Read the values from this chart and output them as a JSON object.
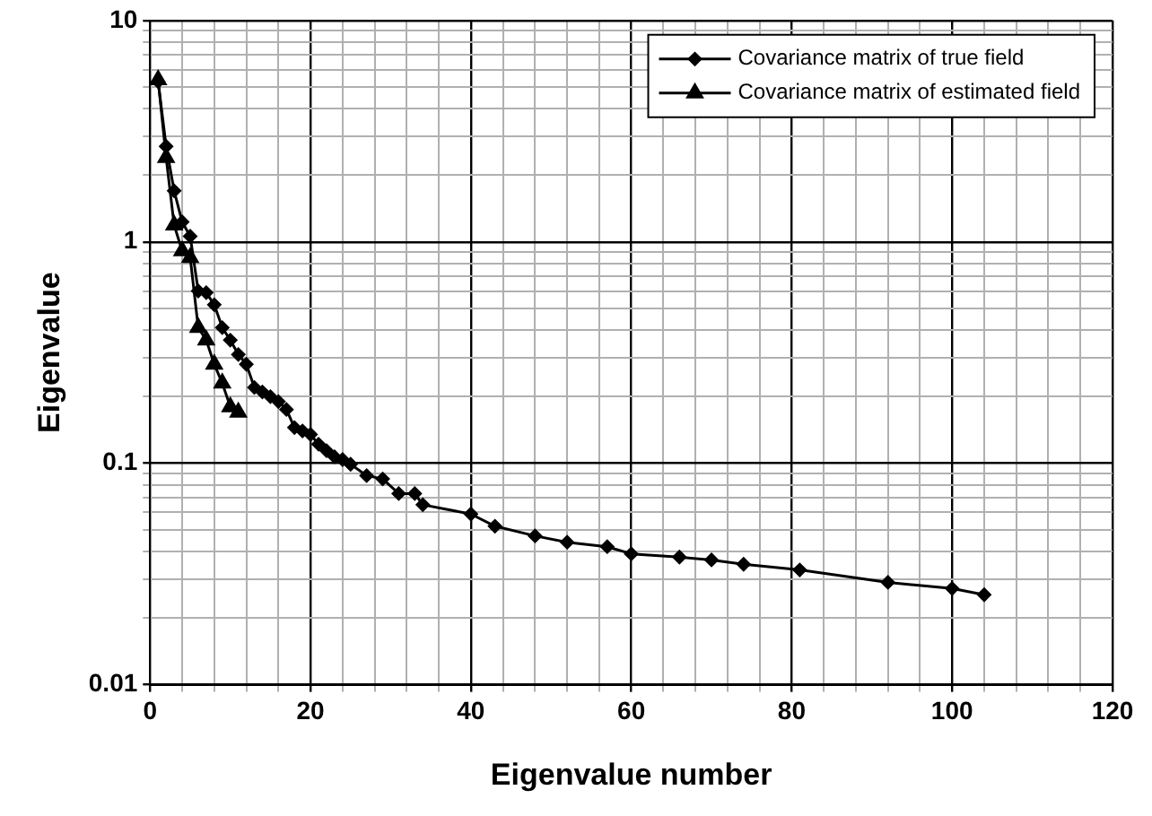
{
  "chart_data": {
    "type": "line",
    "xlabel": "Eigenvalue number",
    "ylabel": "Eigenvalue",
    "log": "y",
    "grid": true,
    "legend": "top right",
    "xlim": [
      0,
      120
    ],
    "xticks": [
      0,
      {
        "value": 4,
        "label": null
      },
      {
        "value": 8,
        "label": null
      },
      {
        "value": 12,
        "label": null
      },
      {
        "value": 16,
        "label": null
      },
      20,
      {
        "value": 24,
        "label": null
      },
      {
        "value": 28,
        "label": null
      },
      {
        "value": 32,
        "label": null
      },
      {
        "value": 36,
        "label": null
      },
      40,
      {
        "value": 44,
        "label": null
      },
      {
        "value": 48,
        "label": null
      },
      {
        "value": 52,
        "label": null
      },
      {
        "value": 56,
        "label": null
      },
      60,
      {
        "value": 64,
        "label": null
      },
      {
        "value": 68,
        "label": null
      },
      {
        "value": 72,
        "label": null
      },
      {
        "value": 76,
        "label": null
      },
      80,
      {
        "value": 84,
        "label": null
      },
      {
        "value": 88,
        "label": null
      },
      {
        "value": 92,
        "label": null
      },
      {
        "value": 96,
        "label": null
      },
      100,
      {
        "value": 104,
        "label": null
      },
      {
        "value": 108,
        "label": null
      },
      {
        "value": 112,
        "label": null
      },
      {
        "value": 116,
        "label": null
      },
      120
    ],
    "ylim": [
      0.01,
      10
    ],
    "yticks": [
      0.01,
      {
        "value": 0.02,
        "label": null
      },
      {
        "value": 0.03,
        "label": null
      },
      {
        "value": 0.04,
        "label": null
      },
      {
        "value": 0.05,
        "label": null
      },
      {
        "value": 0.06,
        "label": null
      },
      {
        "value": 0.07,
        "label": null
      },
      {
        "value": 0.08,
        "label": null
      },
      {
        "value": 0.09,
        "label": null
      },
      0.1,
      {
        "value": 0.2,
        "label": null
      },
      {
        "value": 0.3,
        "label": null
      },
      {
        "value": 0.4,
        "label": null
      },
      {
        "value": 0.5,
        "label": null
      },
      {
        "value": 0.6,
        "label": null
      },
      {
        "value": 0.7,
        "label": null
      },
      {
        "value": 0.8,
        "label": null
      },
      {
        "value": 0.9,
        "label": null
      },
      1,
      {
        "value": 2,
        "label": null
      },
      {
        "value": 3,
        "label": null
      },
      {
        "value": 4,
        "label": null
      },
      {
        "value": 5,
        "label": null
      },
      {
        "value": 6,
        "label": null
      },
      {
        "value": 7,
        "label": null
      },
      {
        "value": 8,
        "label": null
      },
      {
        "value": 9,
        "label": null
      },
      10
    ],
    "series": [
      {
        "name": "Covariance matrix of true field",
        "color": "#000000",
        "marker": "diamond",
        "x": [
          1,
          2,
          3,
          4,
          5,
          6,
          7,
          8,
          9,
          10,
          11,
          12,
          13,
          14,
          15,
          16,
          17,
          18,
          19,
          20,
          21,
          22,
          23,
          24,
          25,
          27,
          29,
          31,
          33,
          34,
          40,
          43,
          48,
          52,
          57,
          60,
          66,
          70,
          74,
          81,
          92,
          100,
          104
        ],
        "values": [
          5.3,
          2.7,
          1.7,
          1.23,
          1.06,
          0.6,
          0.59,
          0.52,
          0.41,
          0.36,
          0.31,
          0.28,
          0.22,
          0.21,
          0.2,
          0.19,
          0.175,
          0.145,
          0.14,
          0.135,
          0.122,
          0.114,
          0.107,
          0.104,
          0.099,
          0.088,
          0.085,
          0.073,
          0.073,
          0.065,
          0.059,
          0.052,
          0.047,
          0.044,
          0.042,
          0.039,
          0.0377,
          0.0366,
          0.035,
          0.033,
          0.029,
          0.0272,
          0.0255
        ]
      },
      {
        "name": "Covariance matrix of estimated field",
        "color": "#000000",
        "marker": "triangle",
        "x": [
          1,
          2,
          3,
          4,
          5,
          6,
          7,
          8,
          9,
          10,
          11
        ],
        "values": [
          5.4,
          2.4,
          1.19,
          0.91,
          0.85,
          0.41,
          0.36,
          0.28,
          0.23,
          0.18,
          0.17
        ]
      }
    ]
  }
}
